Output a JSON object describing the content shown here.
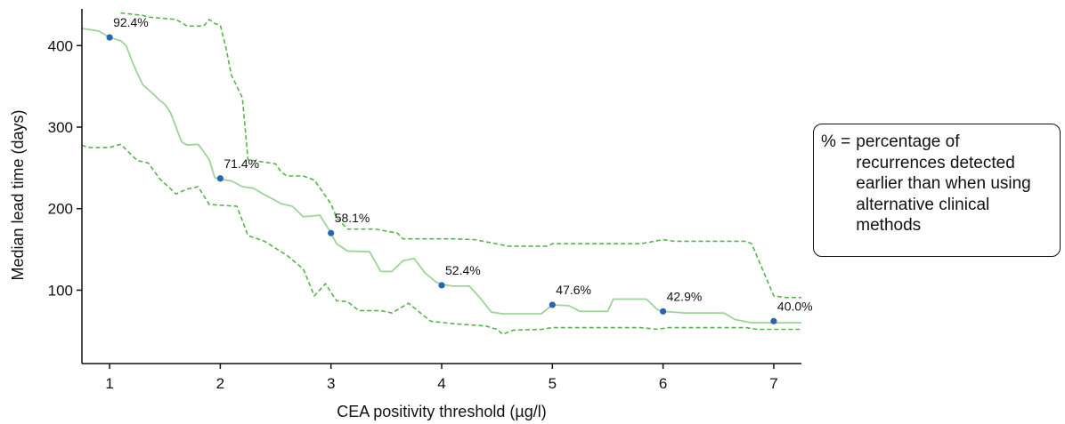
{
  "chart_data": {
    "type": "line",
    "xlabel": "CEA positivity threshold (µg/l)",
    "ylabel": "Median lead time (days)",
    "xlim": [
      0.75,
      7.25
    ],
    "ylim": [
      10,
      445
    ],
    "x_ticks": [
      "1",
      "2",
      "3",
      "4",
      "5",
      "6",
      "7"
    ],
    "y_ticks": [
      "100",
      "200",
      "300",
      "400"
    ],
    "grid": false,
    "series": [
      {
        "role": "median",
        "color": "#9ed39a",
        "line_style": "solid",
        "points": [
          [
            0.75,
            421
          ],
          [
            0.9,
            418
          ],
          [
            1.0,
            410
          ],
          [
            1.1,
            406
          ],
          [
            1.15,
            400
          ],
          [
            1.2,
            382
          ],
          [
            1.25,
            366
          ],
          [
            1.3,
            352
          ],
          [
            1.4,
            340
          ],
          [
            1.45,
            333
          ],
          [
            1.5,
            328
          ],
          [
            1.55,
            318
          ],
          [
            1.6,
            300
          ],
          [
            1.65,
            282
          ],
          [
            1.7,
            278
          ],
          [
            1.8,
            279
          ],
          [
            1.85,
            270
          ],
          [
            1.9,
            260
          ],
          [
            1.95,
            238
          ],
          [
            2.0,
            236
          ],
          [
            2.1,
            234
          ],
          [
            2.2,
            227
          ],
          [
            2.3,
            225
          ],
          [
            2.4,
            217
          ],
          [
            2.5,
            210
          ],
          [
            2.55,
            206
          ],
          [
            2.65,
            203
          ],
          [
            2.75,
            190
          ],
          [
            2.9,
            192
          ],
          [
            3.0,
            170
          ],
          [
            3.05,
            157
          ],
          [
            3.15,
            148
          ],
          [
            3.35,
            147
          ],
          [
            3.45,
            123
          ],
          [
            3.55,
            123
          ],
          [
            3.65,
            136
          ],
          [
            3.75,
            139
          ],
          [
            3.85,
            121
          ],
          [
            3.95,
            110
          ],
          [
            4.0,
            107
          ],
          [
            4.1,
            105
          ],
          [
            4.25,
            105
          ],
          [
            4.35,
            90
          ],
          [
            4.45,
            73
          ],
          [
            4.55,
            71
          ],
          [
            4.9,
            71
          ],
          [
            5.0,
            82
          ],
          [
            5.15,
            81
          ],
          [
            5.25,
            74
          ],
          [
            5.5,
            74
          ],
          [
            5.55,
            89
          ],
          [
            5.85,
            89
          ],
          [
            5.95,
            76
          ],
          [
            6.0,
            74
          ],
          [
            6.2,
            72
          ],
          [
            6.55,
            72
          ],
          [
            6.65,
            64
          ],
          [
            6.8,
            60
          ],
          [
            7.0,
            60
          ],
          [
            7.25,
            60
          ]
        ]
      },
      {
        "role": "upper-bound",
        "color": "#57b34b",
        "line_style": "dashed",
        "points": [
          [
            1.1,
            440
          ],
          [
            1.3,
            437
          ],
          [
            1.35,
            435
          ],
          [
            1.6,
            432
          ],
          [
            1.7,
            424
          ],
          [
            1.85,
            424
          ],
          [
            1.9,
            432
          ],
          [
            1.95,
            427
          ],
          [
            2.0,
            425
          ],
          [
            2.05,
            398
          ],
          [
            2.1,
            364
          ],
          [
            2.15,
            350
          ],
          [
            2.2,
            336
          ],
          [
            2.25,
            260
          ],
          [
            2.5,
            255
          ],
          [
            2.55,
            245
          ],
          [
            2.6,
            240
          ],
          [
            2.75,
            240
          ],
          [
            2.85,
            235
          ],
          [
            3.0,
            206
          ],
          [
            3.05,
            189
          ],
          [
            3.15,
            175
          ],
          [
            3.4,
            175
          ],
          [
            3.6,
            170
          ],
          [
            3.65,
            163
          ],
          [
            4.1,
            163
          ],
          [
            4.3,
            162
          ],
          [
            4.6,
            154
          ],
          [
            4.95,
            154
          ],
          [
            5.0,
            157
          ],
          [
            5.8,
            157
          ],
          [
            6.0,
            162
          ],
          [
            6.1,
            160
          ],
          [
            6.75,
            160
          ],
          [
            6.8,
            157
          ],
          [
            7.0,
            93
          ],
          [
            7.1,
            91
          ],
          [
            7.25,
            91
          ]
        ]
      },
      {
        "role": "lower-bound",
        "color": "#57b34b",
        "line_style": "dashed",
        "points": [
          [
            0.75,
            278
          ],
          [
            0.8,
            275
          ],
          [
            1.0,
            275
          ],
          [
            1.1,
            279
          ],
          [
            1.25,
            259
          ],
          [
            1.35,
            256
          ],
          [
            1.45,
            237
          ],
          [
            1.6,
            218
          ],
          [
            1.7,
            224
          ],
          [
            1.8,
            227
          ],
          [
            1.9,
            205
          ],
          [
            2.15,
            203
          ],
          [
            2.25,
            167
          ],
          [
            2.4,
            160
          ],
          [
            2.55,
            147
          ],
          [
            2.6,
            143
          ],
          [
            2.75,
            126
          ],
          [
            2.85,
            93
          ],
          [
            2.95,
            108
          ],
          [
            3.05,
            87
          ],
          [
            3.15,
            86
          ],
          [
            3.25,
            75
          ],
          [
            3.45,
            75
          ],
          [
            3.55,
            72
          ],
          [
            3.7,
            84
          ],
          [
            3.9,
            62
          ],
          [
            4.1,
            59
          ],
          [
            4.4,
            56
          ],
          [
            4.5,
            52
          ],
          [
            4.55,
            46
          ],
          [
            4.65,
            51
          ],
          [
            4.9,
            52
          ],
          [
            5.0,
            54
          ],
          [
            5.8,
            54
          ],
          [
            5.95,
            52
          ],
          [
            6.05,
            54
          ],
          [
            6.75,
            54
          ],
          [
            6.85,
            52
          ],
          [
            7.25,
            52
          ]
        ]
      }
    ],
    "points": [
      {
        "x": 1,
        "y": 410,
        "label": "92.4%"
      },
      {
        "x": 2,
        "y": 237,
        "label": "71.4%"
      },
      {
        "x": 3,
        "y": 170,
        "label": "58.1%"
      },
      {
        "x": 4,
        "y": 106,
        "label": "52.4%"
      },
      {
        "x": 5,
        "y": 82,
        "label": "47.6%"
      },
      {
        "x": 6,
        "y": 74,
        "label": "42.9%"
      },
      {
        "x": 7,
        "y": 62,
        "label": "40.0%"
      }
    ],
    "point_color": "#2a64ad",
    "legend": {
      "placement": "right",
      "symbol": "% =",
      "text": "percentage of recurrences detected earlier than when using alternative clinical methods"
    }
  }
}
